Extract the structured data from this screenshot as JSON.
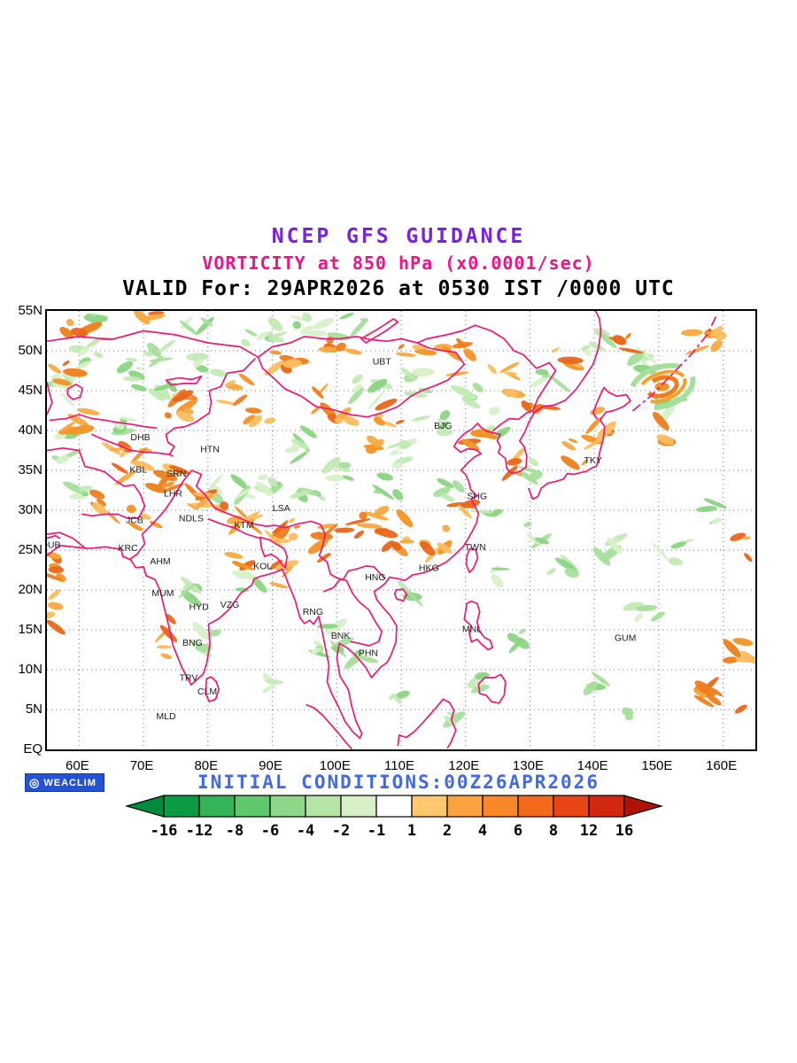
{
  "header": {
    "title": "NCEP GFS GUIDANCE",
    "subtitle": "VORTICITY at 850 hPa (x0.0001/sec)",
    "valid_line": "VALID For: 29APR2026 at 0530 IST /0000 UTC"
  },
  "footer": {
    "logo_text": "WEACLIM",
    "initial_conditions": "INITIAL CONDITIONS:00Z26APR2026"
  },
  "colors": {
    "title": "#7B1FE0",
    "subtitle": "#F0128A",
    "coastline": "#EC1878",
    "initial_conditions": "#4169E1",
    "logo_background": "#2353D4",
    "grid": "#777777"
  },
  "chart_data": {
    "type": "heatmap",
    "title": "NCEP GFS GUIDANCE",
    "subtitle": "VORTICITY at 850 hPa (x0.0001/sec)",
    "variable": "vorticity",
    "level_hPa": 850,
    "units": "x0.0001/sec",
    "valid_for": "29APR2026 at 0530 IST /0000 UTC",
    "initial_conditions": "00Z26APR2026",
    "x_axis": {
      "label": "longitude",
      "ticks": [
        "60E",
        "70E",
        "80E",
        "90E",
        "100E",
        "110E",
        "120E",
        "130E",
        "140E",
        "150E",
        "160E"
      ],
      "range_deg": [
        55,
        165
      ]
    },
    "y_axis": {
      "label": "latitude",
      "ticks": [
        "55N",
        "50N",
        "45N",
        "40N",
        "35N",
        "30N",
        "25N",
        "20N",
        "15N",
        "10N",
        "5N",
        "EQ"
      ],
      "range_deg": [
        0,
        55
      ]
    },
    "grid": "dotted",
    "colorbar": {
      "boundaries": [
        -16,
        -12,
        -8,
        -6,
        -4,
        -2,
        -1,
        1,
        2,
        4,
        6,
        8,
        12,
        16
      ],
      "segment_colors": [
        "#0C9B45",
        "#33B457",
        "#5FC76C",
        "#8ED789",
        "#B5E5A5",
        "#D8F0C6",
        "#FFFFFF",
        "#FFC76E",
        "#FCA33F",
        "#F8872A",
        "#F2691C",
        "#E84715",
        "#D32810"
      ],
      "arrow_left_color": "#008C3C",
      "arrow_right_color": "#AE1306"
    },
    "negative_fill_palette": [
      "#C2EAB4",
      "#A6DF9B",
      "#8BD583",
      "#D7F1C8"
    ],
    "positive_fill_palette": [
      "#F7A93F",
      "#F29324",
      "#EE7E1B",
      "#FABD5E",
      "#E9661A"
    ],
    "stations": [
      {
        "code": "UBT",
        "lon": 107.0,
        "lat": 48.3
      },
      {
        "code": "BJG",
        "lon": 116.5,
        "lat": 40.2
      },
      {
        "code": "TKY",
        "lon": 139.8,
        "lat": 35.9
      },
      {
        "code": "DHB",
        "lon": 69.5,
        "lat": 38.8
      },
      {
        "code": "HTN",
        "lon": 80.3,
        "lat": 37.3
      },
      {
        "code": "KBL",
        "lon": 69.2,
        "lat": 34.7
      },
      {
        "code": "SRN",
        "lon": 75.1,
        "lat": 34.2
      },
      {
        "code": "LHR",
        "lon": 74.6,
        "lat": 31.7
      },
      {
        "code": "JCB",
        "lon": 68.6,
        "lat": 28.4
      },
      {
        "code": "NDLS",
        "lon": 77.4,
        "lat": 28.6
      },
      {
        "code": "LSA",
        "lon": 91.4,
        "lat": 29.9
      },
      {
        "code": "KTM",
        "lon": 85.6,
        "lat": 27.8
      },
      {
        "code": "SHG",
        "lon": 121.8,
        "lat": 31.4
      },
      {
        "code": "DUB",
        "lon": 55.6,
        "lat": 25.3
      },
      {
        "code": "KRC",
        "lon": 67.6,
        "lat": 24.9
      },
      {
        "code": "TWN",
        "lon": 121.5,
        "lat": 25.0
      },
      {
        "code": "AHM",
        "lon": 72.6,
        "lat": 23.2
      },
      {
        "code": "KOL",
        "lon": 88.5,
        "lat": 22.6
      },
      {
        "code": "HNG",
        "lon": 106.0,
        "lat": 21.2
      },
      {
        "code": "HKG",
        "lon": 114.3,
        "lat": 22.4
      },
      {
        "code": "MUM",
        "lon": 73.0,
        "lat": 19.2
      },
      {
        "code": "HYD",
        "lon": 78.6,
        "lat": 17.5
      },
      {
        "code": "VZG",
        "lon": 83.4,
        "lat": 17.8
      },
      {
        "code": "RNG",
        "lon": 96.3,
        "lat": 16.9
      },
      {
        "code": "MNL",
        "lon": 121.0,
        "lat": 14.7
      },
      {
        "code": "BNK",
        "lon": 100.6,
        "lat": 13.9
      },
      {
        "code": "GUM",
        "lon": 144.8,
        "lat": 13.6
      },
      {
        "code": "BNG",
        "lon": 77.6,
        "lat": 13.0
      },
      {
        "code": "PHN",
        "lon": 104.9,
        "lat": 11.7
      },
      {
        "code": "TRV",
        "lon": 77.0,
        "lat": 8.6
      },
      {
        "code": "CLM",
        "lon": 79.9,
        "lat": 6.9
      },
      {
        "code": "MLD",
        "lon": 73.5,
        "lat": 3.8
      }
    ]
  }
}
